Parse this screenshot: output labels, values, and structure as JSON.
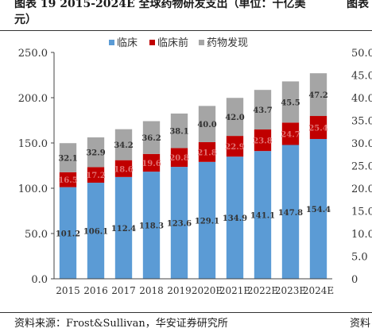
{
  "caption": {
    "line1": "图表 19 2015-2024E 全球药物研发支出（单位：十亿美",
    "line2": "元）",
    "right_fragment": "图表"
  },
  "source": {
    "text": "资料来源：Frost&Sullivan，华安证券研究所",
    "right_fragment": "资料"
  },
  "chart_data": {
    "type": "bar",
    "stacked": true,
    "categories": [
      "2015",
      "2016",
      "2017",
      "2018",
      "2019",
      "2020E",
      "2021E",
      "2022E",
      "2023E",
      "2024E"
    ],
    "series": [
      {
        "name": "临床",
        "color": "#5b9bd5",
        "values": [
          101.2,
          106.1,
          112.4,
          118.3,
          123.6,
          129.1,
          134.9,
          141.1,
          147.8,
          154.4
        ]
      },
      {
        "name": "临床前",
        "color": "#c00000",
        "values": [
          16.5,
          17.2,
          18.6,
          19.6,
          20.8,
          21.8,
          22.9,
          23.8,
          24.7,
          25.4
        ]
      },
      {
        "name": "药物发现",
        "color": "#a5a5a5",
        "values": [
          32.1,
          32.9,
          34.2,
          36.2,
          38.1,
          40.0,
          42.0,
          43.7,
          45.5,
          47.2
        ]
      }
    ],
    "yticks": [
      "0.0",
      "50.0",
      "100.0",
      "150.0",
      "200.0",
      "250.0"
    ],
    "ylim": [
      0,
      250
    ],
    "right_axis_ticks": [
      "0",
      "5.0",
      "10.0",
      "15.0",
      "20.0",
      "25.0",
      "30.0",
      "35.0",
      "40.0",
      "45.0",
      "50.0"
    ],
    "legend_position": "top-center",
    "grid": false
  }
}
